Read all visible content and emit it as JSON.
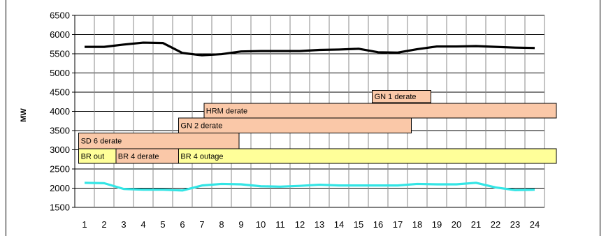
{
  "chart_data": {
    "type": "line",
    "title": "",
    "xlabel": "",
    "ylabel": "MW",
    "ylim": [
      1500,
      6500
    ],
    "yticks": [
      "6500",
      "6000",
      "5500",
      "5000",
      "4500",
      "4000",
      "3500",
      "3000",
      "2500",
      "2000",
      "1500"
    ],
    "categories": [
      "1",
      "2",
      "3",
      "4",
      "5",
      "6",
      "7",
      "8",
      "9",
      "10",
      "11",
      "12",
      "13",
      "14",
      "15",
      "16",
      "17",
      "18",
      "19",
      "20",
      "21",
      "22",
      "23",
      "24"
    ],
    "grid": true,
    "series": [
      {
        "color": "#000000",
        "values": [
          5680,
          5680,
          5740,
          5790,
          5780,
          5520,
          5460,
          5490,
          5560,
          5570,
          5570,
          5570,
          5600,
          5610,
          5630,
          5540,
          5530,
          5620,
          5690,
          5690,
          5700,
          5680,
          5660,
          5650
        ]
      },
      {
        "color": "#33e5e5",
        "values": [
          2140,
          2130,
          1980,
          1960,
          1960,
          1940,
          2070,
          2110,
          2100,
          2050,
          2040,
          2060,
          2090,
          2070,
          2070,
          2070,
          2070,
          2110,
          2100,
          2100,
          2140,
          2020,
          1950,
          1960
        ]
      }
    ],
    "annotations": [
      {
        "label": "GN 1  derate",
        "start": 15.7,
        "end": 18.7,
        "y_from": 4230,
        "y_to": 4550,
        "color": "#fac8a8"
      },
      {
        "label": "HRM  derate",
        "start": 7.1,
        "end": 25.1,
        "y_from": 3830,
        "y_to": 4210,
        "color": "#fac8a8"
      },
      {
        "label": "GN 2  derate",
        "start": 5.8,
        "end": 17.7,
        "y_from": 3440,
        "y_to": 3830,
        "color": "#fac8a8"
      },
      {
        "label": "SD 6   derate",
        "start": 0.7,
        "end": 8.9,
        "y_from": 3030,
        "y_to": 3440,
        "color": "#fac8a8"
      },
      {
        "label": "BR  out",
        "start": 0.7,
        "end": 2.6,
        "y_from": 2650,
        "y_to": 3030,
        "color": "#ffff99"
      },
      {
        "label": "BR 4 derate",
        "start": 2.6,
        "end": 5.8,
        "y_from": 2650,
        "y_to": 3030,
        "color": "#fac8a8"
      },
      {
        "label": "BR 4  outage",
        "start": 5.8,
        "end": 25.1,
        "y_from": 2650,
        "y_to": 3030,
        "color": "#ffff99"
      }
    ]
  }
}
